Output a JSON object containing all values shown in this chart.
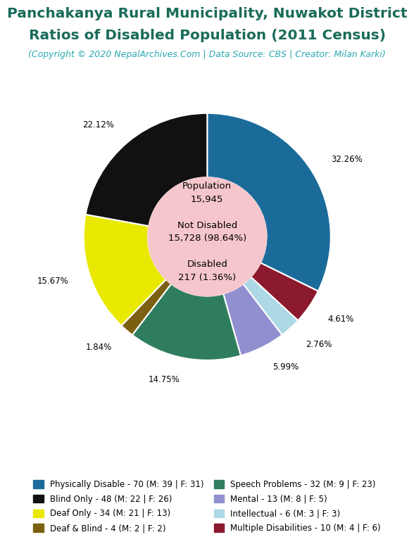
{
  "title_line1": "Panchakanya Rural Municipality, Nuwakot District",
  "title_line2": "Ratios of Disabled Population (2011 Census)",
  "subtitle": "(Copyright © 2020 NepalArchives.Com | Data Source: CBS | Creator: Milan Karki)",
  "title_color": "#1a6b5a",
  "subtitle_color": "#29a8b0",
  "total_population": 15945,
  "not_disabled": 15728,
  "not_disabled_pct": 98.64,
  "disabled_total": 217,
  "disabled_pct": 1.36,
  "center_bg_color": "#f5c6cb",
  "slices": [
    {
      "label": "Physically Disable - 70 (M: 39 | F: 31)",
      "value": 70,
      "pct": "32.26%",
      "color": "#1a6b9a"
    },
    {
      "label": "Multiple Disabilities - 10 (M: 4 | F: 6)",
      "value": 10,
      "pct": "4.61%",
      "color": "#8b1a2e"
    },
    {
      "label": "Intellectual - 6 (M: 3 | F: 3)",
      "value": 6,
      "pct": "2.76%",
      "color": "#add8e6"
    },
    {
      "label": "Mental - 13 (M: 8 | F: 5)",
      "value": 13,
      "pct": "5.99%",
      "color": "#9090d0"
    },
    {
      "label": "Speech Problems - 32 (M: 9 | F: 23)",
      "value": 32,
      "pct": "14.75%",
      "color": "#2e7d5e"
    },
    {
      "label": "Deaf & Blind - 4 (M: 2 | F: 2)",
      "value": 4,
      "pct": "1.84%",
      "color": "#7a6010"
    },
    {
      "label": "Deaf Only - 34 (M: 21 | F: 13)",
      "value": 34,
      "pct": "15.67%",
      "color": "#e8e800"
    },
    {
      "label": "Blind Only - 48 (M: 22 | F: 26)",
      "value": 48,
      "pct": "22.12%",
      "color": "#111111"
    }
  ],
  "legend_entries": [
    {
      "label": "Physically Disable - 70 (M: 39 | F: 31)",
      "color": "#1a6b9a"
    },
    {
      "label": "Blind Only - 48 (M: 22 | F: 26)",
      "color": "#111111"
    },
    {
      "label": "Deaf Only - 34 (M: 21 | F: 13)",
      "color": "#e8e800"
    },
    {
      "label": "Deaf & Blind - 4 (M: 2 | F: 2)",
      "color": "#7a6010"
    },
    {
      "label": "Speech Problems - 32 (M: 9 | F: 23)",
      "color": "#2e7d5e"
    },
    {
      "label": "Mental - 13 (M: 8 | F: 5)",
      "color": "#9090d0"
    },
    {
      "label": "Intellectual - 6 (M: 3 | F: 3)",
      "color": "#add8e6"
    },
    {
      "label": "Multiple Disabilities - 10 (M: 4 | F: 6)",
      "color": "#8b1a2e"
    }
  ]
}
